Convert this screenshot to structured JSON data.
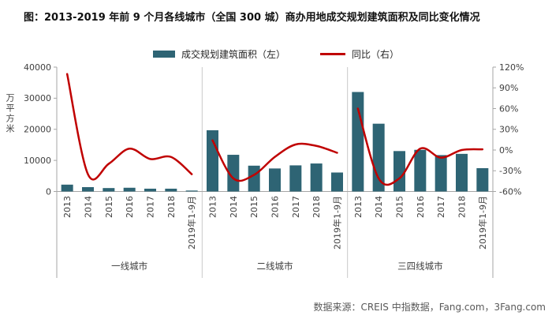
{
  "title": "图：2013-2019 年前 9 个月各线城市（全国 300 城）商办用地成交规划建筑面积及同比变化情况",
  "legend": {
    "bar_label": "成交规划建筑面积（左）",
    "line_label": "同比（右）"
  },
  "source": "数据来源：CREIS 中指数据，Fang.com，3Fang.com",
  "colors": {
    "bar": "#2E6474",
    "line": "#C00000",
    "axis": "#A6A6A6",
    "separator": "#C9C9C9",
    "text": "#404040",
    "title": "#111111",
    "source": "#595959"
  },
  "chart_data": {
    "type": "bar",
    "subtype": "grouped bar + smoothed line combo, dual axis",
    "groups": [
      "一线城市",
      "二线城市",
      "三四线城市"
    ],
    "categories": [
      "2013",
      "2014",
      "2015",
      "2016",
      "2017",
      "2018",
      "2019年1-9月"
    ],
    "bar_series": {
      "name": "成交规划建筑面积（左）",
      "unit": "万平方米",
      "values": [
        [
          2200,
          1400,
          1100,
          1200,
          900,
          900,
          300
        ],
        [
          19700,
          11800,
          8300,
          7400,
          8400,
          9000,
          6100
        ],
        [
          32000,
          21800,
          13000,
          13400,
          11700,
          12100,
          7500
        ]
      ]
    },
    "line_series": {
      "name": "同比（右）",
      "unit": "%",
      "values": [
        [
          110,
          -35,
          -20,
          2,
          -13,
          -10,
          -35
        ],
        [
          14,
          -41,
          -36,
          -10,
          8,
          6,
          -4
        ],
        [
          60,
          -41,
          -41,
          2,
          -11,
          0,
          1
        ]
      ]
    },
    "left_axis": {
      "label": "万平方米",
      "min": 0,
      "max": 40000,
      "ticks": [
        "0",
        "10000",
        "20000",
        "30000",
        "40000"
      ],
      "tick_values": [
        0,
        10000,
        20000,
        30000,
        40000
      ]
    },
    "right_axis": {
      "min": -60,
      "max": 120,
      "ticks": [
        "-60%",
        "-30%",
        "0%",
        "30%",
        "60%",
        "90%",
        "120%"
      ],
      "tick_values": [
        -60,
        -30,
        0,
        30,
        60,
        90,
        120
      ]
    },
    "grid": "off",
    "legend_position": "top-center"
  }
}
